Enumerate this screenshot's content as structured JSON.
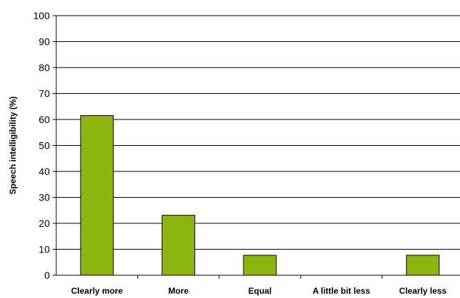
{
  "chart_data": {
    "type": "bar",
    "title": "",
    "xlabel": "",
    "ylabel": "Speech intelligibility (%)",
    "categories": [
      "Clearly more",
      "More",
      "Equal",
      "A little bit less",
      "Clearly less"
    ],
    "values": [
      61.5,
      23.1,
      7.7,
      0,
      7.7
    ],
    "ylim": [
      0,
      100
    ],
    "yticks": [
      0,
      10,
      20,
      30,
      40,
      50,
      60,
      70,
      80,
      90,
      100
    ],
    "grid": true,
    "legend": "none",
    "bar_color": "#8db510",
    "bar_edge_color": "#000000"
  }
}
